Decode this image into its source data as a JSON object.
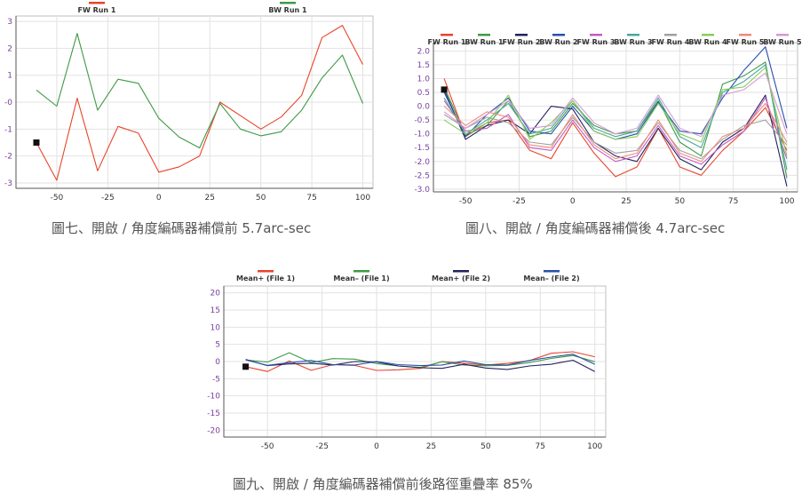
{
  "charts": [
    {
      "id": "c1",
      "caption": "圖七、開啟 / 角度編碼器補償前 5.7arc-sec",
      "chart_data": {
        "type": "line",
        "xlim": [
          -70,
          105
        ],
        "ylim": [
          -3.2,
          3.2
        ],
        "xticks": [
          -50,
          -25,
          0,
          25,
          50,
          75,
          100
        ],
        "yticks": [
          3,
          2,
          1,
          0,
          -1,
          -2,
          -3
        ],
        "ytick_labels": [
          "3",
          "2",
          "1",
          "-0",
          "-1",
          "-2",
          "-3"
        ],
        "grid": true,
        "legend_placement": "top",
        "series": [
          {
            "name": "FW Run 1",
            "color": "#e8442a",
            "x": [
              -60,
              -50,
              -40,
              -30,
              -20,
              -10,
              0,
              10,
              20,
              30,
              40,
              50,
              60,
              70,
              80,
              90,
              100
            ],
            "y": [
              -1.5,
              -2.9,
              0.15,
              -2.55,
              -0.9,
              -1.15,
              -2.6,
              -2.4,
              -2.0,
              0.0,
              -0.5,
              -1.0,
              -0.55,
              0.25,
              2.4,
              2.85,
              1.4
            ]
          },
          {
            "name": "BW Run 1",
            "color": "#3f9a45",
            "x": [
              -60,
              -50,
              -40,
              -30,
              -20,
              -10,
              0,
              10,
              20,
              30,
              40,
              50,
              60,
              70,
              80,
              90,
              100
            ],
            "y": [
              0.45,
              -0.15,
              2.55,
              -0.3,
              0.85,
              0.7,
              -0.6,
              -1.3,
              -1.7,
              -0.05,
              -1.0,
              -1.25,
              -1.1,
              -0.3,
              0.9,
              1.75,
              -0.05
            ]
          }
        ]
      }
    },
    {
      "id": "c2",
      "caption": "圖八、開啟 / 角度編碼器補償後 4.7arc-sec",
      "chart_data": {
        "type": "line",
        "xlim": [
          -65,
          105
        ],
        "ylim": [
          -3.1,
          2.3
        ],
        "xticks": [
          -50,
          -25,
          0,
          25,
          50,
          75,
          100
        ],
        "yticks": [
          2.0,
          1.5,
          1.0,
          0.5,
          0.0,
          -0.5,
          -1.0,
          -1.5,
          -2.0,
          -2.5,
          -3.0
        ],
        "ytick_labels": [
          "2.0",
          "1.5",
          "1.0",
          "0.5",
          "0.0",
          "-0.5",
          "-1.0",
          "-1.5",
          "-2.0",
          "-2.5",
          "-3.0"
        ],
        "grid": true,
        "legend_placement": "top",
        "series": [
          {
            "name": "FW Run 1",
            "color": "#e8442a",
            "x": [
              -60,
              -50,
              -40,
              -30,
              -20,
              -10,
              0,
              10,
              20,
              30,
              40,
              50,
              60,
              70,
              80,
              90,
              100
            ],
            "y": [
              1.0,
              -1.1,
              -0.6,
              -0.5,
              -1.6,
              -1.9,
              -0.6,
              -1.7,
              -2.55,
              -2.2,
              -0.8,
              -2.2,
              -2.5,
              -1.6,
              -0.9,
              -0.05,
              -1.6
            ]
          },
          {
            "name": "BW Run 1",
            "color": "#3f9a45",
            "x": [
              -60,
              -50,
              -40,
              -30,
              -20,
              -10,
              0,
              10,
              20,
              30,
              40,
              50,
              60,
              70,
              80,
              90,
              100
            ],
            "y": [
              0.7,
              -1.05,
              -0.7,
              0.2,
              -1.1,
              -0.9,
              0.1,
              -0.7,
              -1.0,
              -0.9,
              0.2,
              -1.3,
              -1.8,
              0.8,
              1.1,
              1.6,
              -2.6
            ]
          },
          {
            "name": "FW Run 2",
            "color": "#23235e",
            "x": [
              -60,
              -50,
              -40,
              -30,
              -20,
              -10,
              0,
              10,
              20,
              30,
              40,
              50,
              60,
              70,
              80,
              90,
              100
            ],
            "y": [
              0.6,
              -1.2,
              -0.7,
              -0.5,
              -1.0,
              0.0,
              -0.1,
              -1.3,
              -1.8,
              -2.0,
              -0.8,
              -1.9,
              -2.3,
              -1.3,
              -0.8,
              0.4,
              -2.9
            ]
          },
          {
            "name": "BW Run 2",
            "color": "#2a4fa8",
            "x": [
              -60,
              -50,
              -40,
              -30,
              -20,
              -10,
              0,
              10,
              20,
              30,
              40,
              50,
              60,
              70,
              80,
              90,
              100
            ],
            "y": [
              0.5,
              -1.1,
              -0.3,
              0.3,
              -0.9,
              -1.0,
              0.0,
              -0.9,
              -1.2,
              -1.0,
              0.15,
              -0.9,
              -1.0,
              0.3,
              1.3,
              2.15,
              -0.8
            ]
          },
          {
            "name": "FW Run 3",
            "color": "#c45bc4",
            "x": [
              -60,
              -50,
              -40,
              -30,
              -20,
              -10,
              0,
              10,
              20,
              30,
              40,
              50,
              60,
              70,
              80,
              90,
              100
            ],
            "y": [
              0.2,
              -0.9,
              -0.8,
              -0.3,
              -1.5,
              -1.6,
              -0.5,
              -1.5,
              -2.0,
              -1.8,
              -0.7,
              -1.8,
              -2.1,
              -1.4,
              -0.9,
              0.3,
              -1.9
            ]
          },
          {
            "name": "BW Run 3",
            "color": "#4aa6a0",
            "x": [
              -60,
              -50,
              -40,
              -30,
              -20,
              -10,
              0,
              10,
              20,
              30,
              40,
              50,
              60,
              70,
              80,
              90,
              100
            ],
            "y": [
              0.3,
              -1.0,
              -0.5,
              0.1,
              -1.0,
              -0.8,
              0.2,
              -0.8,
              -1.1,
              -0.9,
              0.3,
              -1.1,
              -1.5,
              0.5,
              0.9,
              1.5,
              -2.3
            ]
          },
          {
            "name": "FW Run 4",
            "color": "#a0a0a0",
            "x": [
              -60,
              -50,
              -40,
              -30,
              -20,
              -10,
              0,
              10,
              20,
              30,
              40,
              50,
              60,
              70,
              80,
              90,
              100
            ],
            "y": [
              -0.3,
              -0.8,
              -0.4,
              -0.6,
              -1.3,
              -1.4,
              -0.4,
              -1.3,
              -1.7,
              -1.6,
              -0.6,
              -1.6,
              -1.9,
              -1.2,
              -0.7,
              -0.5,
              -1.4
            ]
          },
          {
            "name": "BW Run 4",
            "color": "#8acc5a",
            "x": [
              -60,
              -50,
              -40,
              -30,
              -20,
              -10,
              0,
              10,
              20,
              30,
              40,
              50,
              60,
              70,
              80,
              90,
              100
            ],
            "y": [
              -0.5,
              -1.0,
              -0.6,
              0.4,
              -1.2,
              -0.6,
              0.2,
              -0.9,
              -1.2,
              -1.1,
              0.1,
              -1.0,
              -1.3,
              0.6,
              0.7,
              1.4,
              -1.8
            ]
          },
          {
            "name": "FW Run 5",
            "color": "#f08a7a",
            "x": [
              -60,
              -50,
              -40,
              -30,
              -20,
              -10,
              0,
              10,
              20,
              30,
              40,
              50,
              60,
              70,
              80,
              90,
              100
            ],
            "y": [
              0.0,
              -0.7,
              -0.2,
              -0.4,
              -1.4,
              -1.5,
              -0.3,
              -1.4,
              -1.9,
              -1.7,
              -0.5,
              -1.7,
              -2.0,
              -1.1,
              -0.8,
              0.1,
              -1.3
            ]
          },
          {
            "name": "BW Run 5",
            "color": "#d59ad5",
            "x": [
              -60,
              -50,
              -40,
              -30,
              -20,
              -10,
              0,
              10,
              20,
              30,
              40,
              50,
              60,
              70,
              80,
              90,
              100
            ],
            "y": [
              -0.2,
              -0.8,
              -0.3,
              0.2,
              -0.8,
              -0.7,
              0.3,
              -0.6,
              -1.0,
              -0.8,
              0.4,
              -0.8,
              -1.1,
              0.4,
              0.6,
              1.2,
              -1.0
            ]
          }
        ]
      }
    },
    {
      "id": "c3",
      "caption": "圖九、開啟 / 角度編碼器補償前後路徑重疊率 85%",
      "chart_data": {
        "type": "line",
        "xlim": [
          -70,
          105
        ],
        "ylim": [
          -22,
          22
        ],
        "xticks": [
          -50,
          -25,
          0,
          25,
          50,
          75,
          100
        ],
        "yticks": [
          20,
          15,
          10,
          5,
          0,
          -5,
          -10,
          -15,
          -20
        ],
        "ytick_labels": [
          "20",
          "15",
          "10",
          "5",
          "0",
          "-5",
          "-10",
          "-15",
          "-20"
        ],
        "grid": true,
        "legend_placement": "top",
        "series": [
          {
            "name": "Mean+ (File 1)",
            "color": "#e8442a",
            "x": [
              -60,
              -50,
              -40,
              -30,
              -20,
              -10,
              0,
              10,
              20,
              30,
              40,
              50,
              60,
              70,
              80,
              90,
              100
            ],
            "y": [
              -1.5,
              -2.9,
              0.15,
              -2.55,
              -0.9,
              -1.15,
              -2.6,
              -2.4,
              -2.0,
              0.0,
              -0.5,
              -1.0,
              -0.55,
              0.25,
              2.4,
              2.85,
              1.4
            ]
          },
          {
            "name": "Mean– (File 1)",
            "color": "#3f9a45",
            "x": [
              -60,
              -50,
              -40,
              -30,
              -20,
              -10,
              0,
              10,
              20,
              30,
              40,
              50,
              60,
              70,
              80,
              90,
              100
            ],
            "y": [
              0.45,
              -0.15,
              2.55,
              -0.3,
              0.85,
              0.7,
              -0.6,
              -1.3,
              -1.7,
              -0.05,
              -1.0,
              -1.25,
              -1.1,
              -0.3,
              0.9,
              1.75,
              -0.05
            ]
          },
          {
            "name": "Mean+ (File 2)",
            "color": "#23235e",
            "x": [
              -60,
              -50,
              -40,
              -30,
              -20,
              -10,
              0,
              10,
              20,
              30,
              40,
              50,
              60,
              70,
              80,
              90,
              100
            ],
            "y": [
              0.6,
              -1.2,
              -0.7,
              -0.5,
              -1.0,
              0.0,
              -0.1,
              -1.3,
              -1.8,
              -2.0,
              -0.8,
              -1.9,
              -2.3,
              -1.3,
              -0.8,
              0.4,
              -2.9
            ]
          },
          {
            "name": "Mean– (File 2)",
            "color": "#2a4fa8",
            "x": [
              -60,
              -50,
              -40,
              -30,
              -20,
              -10,
              0,
              10,
              20,
              30,
              40,
              50,
              60,
              70,
              80,
              90,
              100
            ],
            "y": [
              0.5,
              -1.1,
              -0.3,
              0.3,
              -0.9,
              -1.0,
              0.0,
              -0.9,
              -1.2,
              -1.0,
              0.15,
              -0.9,
              -1.0,
              0.3,
              1.3,
              2.15,
              -0.8
            ]
          }
        ]
      }
    }
  ]
}
